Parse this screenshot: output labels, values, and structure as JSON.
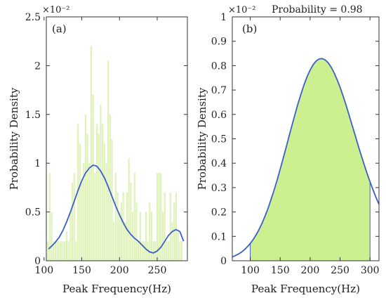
{
  "chart_data": [
    {
      "type": "bar",
      "panel_label": "(a)",
      "xlabel": "Peak Frequency(Hz)",
      "ylabel": "Probability Density",
      "y_exponent_label": "×10⁻²",
      "xlim": [
        103,
        290
      ],
      "ylim": [
        0,
        2.5
      ],
      "xticks": [
        100,
        150,
        200,
        250
      ],
      "yticks": [
        0,
        0.5,
        1,
        1.5,
        2,
        2.5
      ],
      "ytick_labels": [
        "0",
        "0.5",
        "1",
        "1.5",
        "2",
        "2.5"
      ],
      "grid": false,
      "bar_color": "#dff2b8",
      "line_color": "#3a5fc8",
      "histogram": {
        "bin_width": 2.5,
        "x": [
          105,
          107.5,
          110,
          112.5,
          115,
          117.5,
          120,
          122.5,
          125,
          127.5,
          130,
          132.5,
          135,
          137.5,
          140,
          142.5,
          145,
          147.5,
          150,
          152.5,
          155,
          157.5,
          160,
          162.5,
          165,
          167.5,
          170,
          172.5,
          175,
          177.5,
          180,
          182.5,
          185,
          187.5,
          190,
          192.5,
          195,
          197.5,
          200,
          202.5,
          205,
          207.5,
          210,
          212.5,
          215,
          217.5,
          220,
          222.5,
          225,
          227.5,
          230,
          232.5,
          235,
          237.5,
          240,
          242.5,
          245,
          247.5,
          250,
          252.5,
          255,
          257.5,
          260,
          262.5,
          265,
          267.5,
          270,
          272.5,
          275,
          277.5,
          280,
          282.5
        ],
        "values": [
          0.2,
          0.9,
          0.5,
          0.2,
          0.2,
          0.2,
          0.2,
          0.2,
          0.2,
          0.2,
          0.3,
          0.2,
          0.5,
          0.8,
          0.9,
          0.2,
          1.4,
          1.2,
          0.8,
          1.0,
          1.5,
          1.3,
          1.0,
          2.2,
          1.7,
          0.9,
          1.4,
          1.3,
          1.6,
          1.4,
          1.2,
          1.0,
          2.05,
          1.5,
          1.25,
          0.4,
          0.9,
          0.7,
          0.5,
          0.6,
          0.7,
          0.4,
          0.7,
          1.05,
          0.8,
          0.5,
          0.9,
          0.6,
          0.2,
          0.5,
          0.2,
          0.2,
          0.5,
          0.2,
          0.6,
          0.5,
          0.2,
          0.2,
          0.9,
          0.9,
          0.9,
          0.5,
          0.7,
          0.2,
          0.2,
          0.7,
          0.4,
          0.6,
          0.7,
          0.3,
          0.2,
          0.2
        ]
      },
      "kde": {
        "x": [
          106,
          110,
          115,
          120,
          125,
          130,
          135,
          140,
          145,
          150,
          155,
          160,
          165,
          170,
          175,
          180,
          185,
          190,
          195,
          200,
          205,
          210,
          215,
          220,
          225,
          230,
          235,
          240,
          245,
          250,
          255,
          260,
          265,
          270,
          275,
          280,
          285
        ],
        "y": [
          0.12,
          0.15,
          0.19,
          0.24,
          0.31,
          0.4,
          0.5,
          0.61,
          0.72,
          0.82,
          0.9,
          0.95,
          0.98,
          0.97,
          0.92,
          0.85,
          0.76,
          0.66,
          0.56,
          0.47,
          0.39,
          0.32,
          0.27,
          0.23,
          0.2,
          0.16,
          0.12,
          0.09,
          0.08,
          0.1,
          0.14,
          0.2,
          0.26,
          0.3,
          0.32,
          0.3,
          0.2
        ]
      }
    },
    {
      "type": "area",
      "panel_label": "(b)",
      "annotation": "Probability = 0.98",
      "xlabel": "Peak Frequency(Hz)",
      "ylabel": "Probability Density",
      "y_exponent_label": "×10⁻²",
      "xlim": [
        70,
        315
      ],
      "ylim": [
        0,
        1
      ],
      "xticks": [
        100,
        150,
        200,
        250,
        300
      ],
      "yticks": [
        0,
        0.1,
        0.2,
        0.3,
        0.4,
        0.5,
        0.6,
        0.7,
        0.8,
        0.9,
        1
      ],
      "ytick_labels": [
        "0",
        "0.1",
        "0.2",
        "0.3",
        "0.4",
        "0.5",
        "0.6",
        "0.7",
        "0.8",
        "0.9",
        "1"
      ],
      "grid": false,
      "fill_color": "#ccf08f",
      "line_color": "#3a5fc8",
      "shaded_interval": [
        100,
        300
      ],
      "curve": {
        "x": [
          70,
          75,
          80,
          85,
          90,
          95,
          100,
          105,
          110,
          115,
          120,
          125,
          130,
          135,
          140,
          145,
          150,
          155,
          160,
          165,
          170,
          175,
          180,
          185,
          190,
          195,
          200,
          205,
          210,
          215,
          220,
          225,
          230,
          235,
          240,
          245,
          250,
          255,
          260,
          265,
          270,
          275,
          280,
          285,
          290,
          295,
          300,
          305,
          310,
          315
        ],
        "y": [
          0.016,
          0.021,
          0.027,
          0.035,
          0.045,
          0.057,
          0.071,
          0.088,
          0.107,
          0.13,
          0.156,
          0.185,
          0.217,
          0.253,
          0.291,
          0.332,
          0.375,
          0.42,
          0.466,
          0.512,
          0.558,
          0.603,
          0.646,
          0.686,
          0.723,
          0.755,
          0.782,
          0.804,
          0.819,
          0.827,
          0.829,
          0.824,
          0.812,
          0.794,
          0.771,
          0.743,
          0.711,
          0.676,
          0.638,
          0.598,
          0.557,
          0.516,
          0.475,
          0.435,
          0.396,
          0.359,
          0.324,
          0.291,
          0.26,
          0.232
        ]
      }
    }
  ]
}
